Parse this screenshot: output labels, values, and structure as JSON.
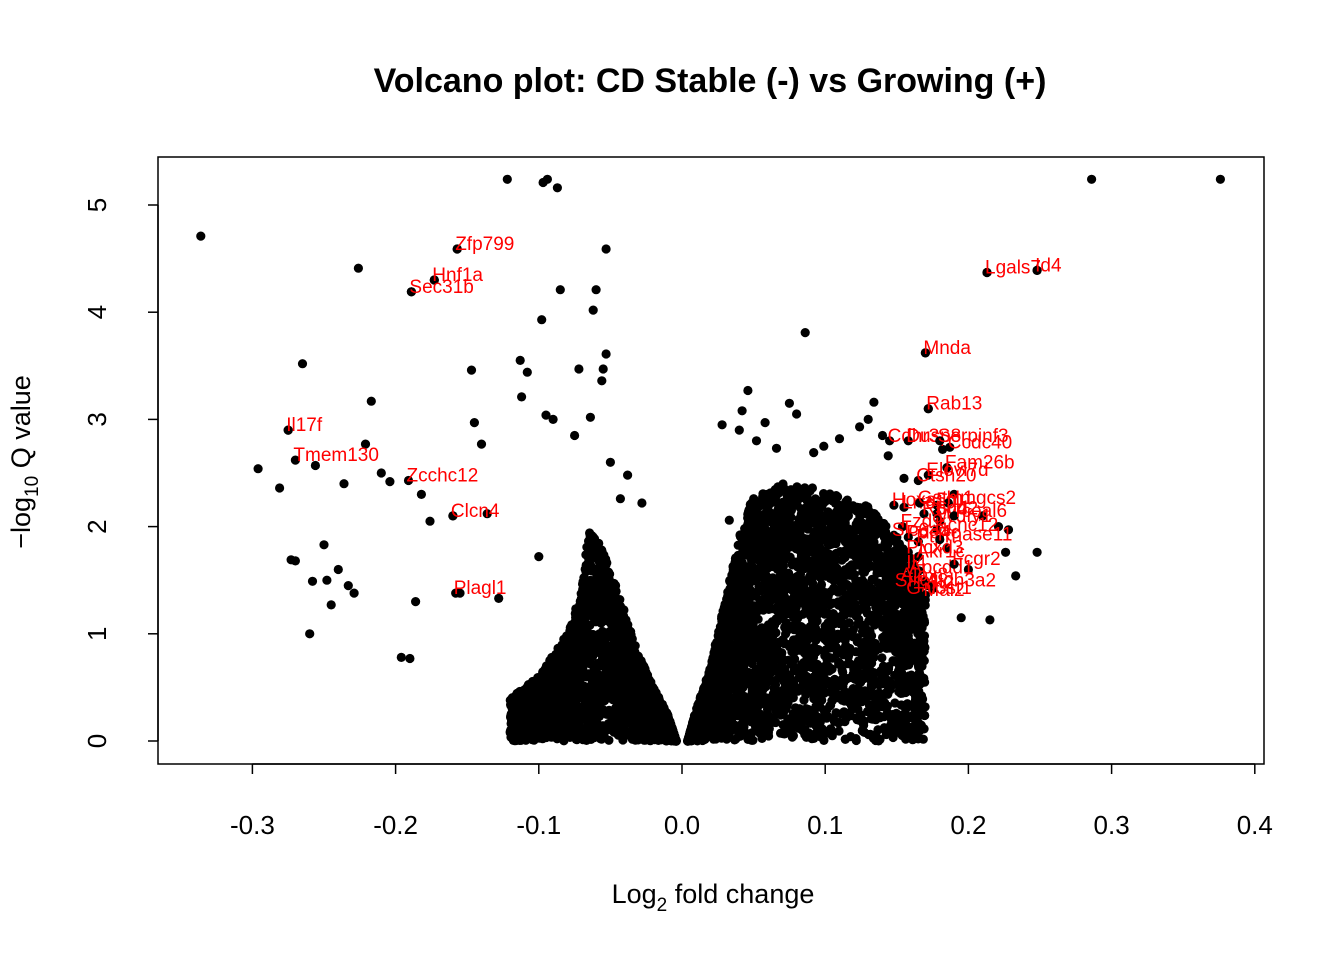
{
  "chart_data": {
    "type": "scatter",
    "title": "Volcano plot: CD Stable (-) vs Growing (+)",
    "xlabel": {
      "main": "Log",
      "sub": "2",
      "rest": " fold change"
    },
    "ylabel": {
      "prefix": "−log",
      "sub": "10",
      "rest": " Q value"
    },
    "xlim": [
      -0.36,
      0.405
    ],
    "ylim": [
      -0.2,
      5.45
    ],
    "x_ticks": [
      -0.3,
      -0.2,
      -0.1,
      0.0,
      0.1,
      0.2,
      0.3,
      0.4
    ],
    "x_tick_labels": [
      "-0.3",
      "-0.2",
      "-0.1",
      "0.0",
      "0.1",
      "0.2",
      "0.3",
      "0.4"
    ],
    "y_ticks": [
      0,
      1,
      2,
      3,
      4,
      5
    ],
    "y_tick_labels": [
      "0",
      "1",
      "2",
      "3",
      "4",
      "5"
    ],
    "grid": false,
    "point_color": "#000000",
    "label_color": "#ff0000",
    "bulk_density": {
      "left_envelope": [
        [
          -0.004,
          0.0
        ],
        [
          -0.01,
          0.25
        ],
        [
          -0.02,
          0.5
        ],
        [
          -0.03,
          0.8
        ],
        [
          -0.04,
          1.2
        ],
        [
          -0.05,
          1.6
        ],
        [
          -0.06,
          1.9
        ],
        [
          -0.065,
          2.0
        ],
        [
          -0.07,
          1.4
        ],
        [
          -0.08,
          1.0
        ],
        [
          -0.1,
          0.6
        ],
        [
          -0.12,
          0.4
        ]
      ],
      "right_envelope": [
        [
          0.004,
          0.0
        ],
        [
          0.01,
          0.3
        ],
        [
          0.02,
          0.7
        ],
        [
          0.03,
          1.3
        ],
        [
          0.04,
          1.9
        ],
        [
          0.05,
          2.3
        ],
        [
          0.07,
          2.4
        ],
        [
          0.1,
          2.35
        ],
        [
          0.13,
          2.2
        ],
        [
          0.15,
          1.9
        ],
        [
          0.17,
          1.5
        ]
      ]
    },
    "points": [
      {
        "x": -0.336,
        "y": 4.71
      },
      {
        "x": -0.296,
        "y": 2.54
      },
      {
        "x": -0.281,
        "y": 2.36
      },
      {
        "x": -0.275,
        "y": 2.9
      },
      {
        "x": -0.273,
        "y": 1.69
      },
      {
        "x": -0.27,
        "y": 1.68
      },
      {
        "x": -0.265,
        "y": 3.52
      },
      {
        "x": -0.26,
        "y": 1.0
      },
      {
        "x": -0.258,
        "y": 1.49
      },
      {
        "x": -0.256,
        "y": 2.57
      },
      {
        "x": -0.25,
        "y": 1.83
      },
      {
        "x": -0.248,
        "y": 1.5
      },
      {
        "x": -0.245,
        "y": 1.27
      },
      {
        "x": -0.24,
        "y": 1.6
      },
      {
        "x": -0.236,
        "y": 2.4
      },
      {
        "x": -0.233,
        "y": 1.45
      },
      {
        "x": -0.229,
        "y": 1.38
      },
      {
        "x": -0.226,
        "y": 4.41
      },
      {
        "x": -0.221,
        "y": 2.77
      },
      {
        "x": -0.217,
        "y": 3.17
      },
      {
        "x": -0.21,
        "y": 2.5
      },
      {
        "x": -0.204,
        "y": 2.42
      },
      {
        "x": -0.196,
        "y": 0.78
      },
      {
        "x": -0.19,
        "y": 0.77
      },
      {
        "x": -0.189,
        "y": 4.19
      },
      {
        "x": -0.186,
        "y": 1.3
      },
      {
        "x": -0.182,
        "y": 2.3
      },
      {
        "x": -0.176,
        "y": 2.05
      },
      {
        "x": -0.173,
        "y": 4.3
      },
      {
        "x": -0.16,
        "y": 2.1
      },
      {
        "x": -0.157,
        "y": 4.59
      },
      {
        "x": -0.155,
        "y": 1.38
      },
      {
        "x": -0.147,
        "y": 3.46
      },
      {
        "x": -0.145,
        "y": 2.97
      },
      {
        "x": -0.14,
        "y": 2.77
      },
      {
        "x": -0.136,
        "y": 2.12
      },
      {
        "x": -0.128,
        "y": 1.33
      },
      {
        "x": -0.122,
        "y": 5.24
      },
      {
        "x": -0.113,
        "y": 3.55
      },
      {
        "x": -0.112,
        "y": 3.21
      },
      {
        "x": -0.108,
        "y": 3.44
      },
      {
        "x": -0.1,
        "y": 1.72
      },
      {
        "x": -0.097,
        "y": 5.21
      },
      {
        "x": -0.095,
        "y": 3.04
      },
      {
        "x": -0.094,
        "y": 5.24
      },
      {
        "x": -0.098,
        "y": 3.93
      },
      {
        "x": -0.09,
        "y": 3.0
      },
      {
        "x": -0.087,
        "y": 5.16
      },
      {
        "x": -0.085,
        "y": 4.21
      },
      {
        "x": -0.075,
        "y": 2.85
      },
      {
        "x": -0.072,
        "y": 3.47
      },
      {
        "x": -0.064,
        "y": 3.02
      },
      {
        "x": -0.062,
        "y": 4.02
      },
      {
        "x": -0.06,
        "y": 4.21
      },
      {
        "x": -0.056,
        "y": 3.36
      },
      {
        "x": -0.055,
        "y": 3.47
      },
      {
        "x": -0.053,
        "y": 4.59
      },
      {
        "x": -0.053,
        "y": 3.61
      },
      {
        "x": -0.05,
        "y": 2.6
      },
      {
        "x": -0.043,
        "y": 2.26
      },
      {
        "x": -0.038,
        "y": 2.48
      },
      {
        "x": -0.028,
        "y": 2.22
      },
      {
        "x": 0.028,
        "y": 2.95
      },
      {
        "x": 0.033,
        "y": 2.06
      },
      {
        "x": 0.04,
        "y": 2.9
      },
      {
        "x": 0.042,
        "y": 3.08
      },
      {
        "x": 0.046,
        "y": 3.27
      },
      {
        "x": 0.052,
        "y": 2.8
      },
      {
        "x": 0.058,
        "y": 2.97
      },
      {
        "x": 0.066,
        "y": 2.73
      },
      {
        "x": 0.075,
        "y": 3.15
      },
      {
        "x": 0.08,
        "y": 3.05
      },
      {
        "x": 0.086,
        "y": 3.81
      },
      {
        "x": 0.092,
        "y": 2.69
      },
      {
        "x": 0.099,
        "y": 2.75
      },
      {
        "x": 0.11,
        "y": 2.82
      },
      {
        "x": 0.124,
        "y": 2.93
      },
      {
        "x": 0.13,
        "y": 3.0
      },
      {
        "x": 0.134,
        "y": 3.16
      },
      {
        "x": 0.14,
        "y": 2.85
      },
      {
        "x": 0.144,
        "y": 2.66
      },
      {
        "x": 0.15,
        "y": 1.9
      },
      {
        "x": 0.155,
        "y": 2.45
      },
      {
        "x": 0.16,
        "y": 1.3
      },
      {
        "x": 0.162,
        "y": 0.87
      },
      {
        "x": 0.166,
        "y": 1.08
      },
      {
        "x": 0.17,
        "y": 3.62
      },
      {
        "x": 0.172,
        "y": 3.1
      },
      {
        "x": 0.175,
        "y": 1.42
      },
      {
        "x": 0.178,
        "y": 2.2
      },
      {
        "x": 0.182,
        "y": 2.72
      },
      {
        "x": 0.185,
        "y": 1.8
      },
      {
        "x": 0.19,
        "y": 2.3
      },
      {
        "x": 0.195,
        "y": 1.15
      },
      {
        "x": 0.2,
        "y": 1.6
      },
      {
        "x": 0.21,
        "y": 2.1
      },
      {
        "x": 0.213,
        "y": 4.37
      },
      {
        "x": 0.215,
        "y": 1.13
      },
      {
        "x": 0.221,
        "y": 2.0
      },
      {
        "x": 0.226,
        "y": 1.76
      },
      {
        "x": 0.228,
        "y": 1.97
      },
      {
        "x": 0.233,
        "y": 1.54
      },
      {
        "x": 0.248,
        "y": 4.39
      },
      {
        "x": 0.248,
        "y": 1.76
      },
      {
        "x": 0.286,
        "y": 5.24
      },
      {
        "x": 0.376,
        "y": 5.24
      }
    ],
    "labeled_genes": [
      {
        "label": "Zfp799",
        "x": -0.157,
        "y": 4.59
      },
      {
        "label": "Hnf1a",
        "x": -0.173,
        "y": 4.3
      },
      {
        "label": "Sec31b",
        "x": -0.189,
        "y": 4.19
      },
      {
        "label": "Il17f",
        "x": -0.275,
        "y": 2.9
      },
      {
        "label": "Tmem130",
        "x": -0.27,
        "y": 2.62
      },
      {
        "label": "Zcchc12",
        "x": -0.191,
        "y": 2.43
      },
      {
        "label": "Clcn4",
        "x": -0.16,
        "y": 2.1
      },
      {
        "label": "Plagl1",
        "x": -0.158,
        "y": 1.38
      },
      {
        "label": "Lgals7",
        "x": 0.213,
        "y": 4.37
      },
      {
        "label": "Id4",
        "x": 0.248,
        "y": 4.39
      },
      {
        "label": "Mnda",
        "x": 0.17,
        "y": 3.62
      },
      {
        "label": "Rab13",
        "x": 0.172,
        "y": 3.1
      },
      {
        "label": "Cdhr3",
        "x": 0.145,
        "y": 2.8
      },
      {
        "label": "Dusp8",
        "x": 0.158,
        "y": 2.8
      },
      {
        "label": "Serpinf3",
        "x": 0.18,
        "y": 2.8
      },
      {
        "label": "Ccdc40",
        "x": 0.187,
        "y": 2.74
      },
      {
        "label": "Fam26b",
        "x": 0.185,
        "y": 2.55
      },
      {
        "label": "Elovl7d",
        "x": 0.172,
        "y": 2.48
      },
      {
        "label": "Ctsh20",
        "x": 0.165,
        "y": 2.43
      },
      {
        "label": "Hoxa5",
        "x": 0.148,
        "y": 2.2
      },
      {
        "label": "Lrrc10",
        "x": 0.155,
        "y": 2.18
      },
      {
        "label": "Gstm1",
        "x": 0.166,
        "y": 2.22
      },
      {
        "label": "Hmgcs2",
        "x": 0.186,
        "y": 2.22
      },
      {
        "label": "Scd2",
        "x": 0.178,
        "y": 2.12
      },
      {
        "label": "Rbp4",
        "x": 0.169,
        "y": 2.12
      },
      {
        "label": "Wdfy1",
        "x": 0.18,
        "y": 2.05
      },
      {
        "label": "Tceal6",
        "x": 0.19,
        "y": 2.1
      },
      {
        "label": "Fzd9",
        "x": 0.154,
        "y": 2.0
      },
      {
        "label": "Kcnc12",
        "x": 0.178,
        "y": 1.97
      },
      {
        "label": "Slc6a1",
        "x": 0.148,
        "y": 1.92
      },
      {
        "label": "Pde4c",
        "x": 0.158,
        "y": 1.9
      },
      {
        "label": "Ptprf",
        "x": 0.165,
        "y": 1.86
      },
      {
        "label": "Plcxd3",
        "x": 0.158,
        "y": 1.76
      },
      {
        "label": "Akr1c",
        "x": 0.165,
        "y": 1.72
      },
      {
        "label": "Rnase11",
        "x": 0.18,
        "y": 1.88
      },
      {
        "label": "Il4",
        "x": 0.158,
        "y": 1.62
      },
      {
        "label": "Apcdd1",
        "x": 0.16,
        "y": 1.57
      },
      {
        "label": "Fcgr2",
        "x": 0.19,
        "y": 1.65
      },
      {
        "label": "Alox8",
        "x": 0.154,
        "y": 1.5
      },
      {
        "label": "Sfrp1",
        "x": 0.15,
        "y": 1.45
      },
      {
        "label": "Dlk2",
        "x": 0.165,
        "y": 1.43
      },
      {
        "label": "Aldh3a2",
        "x": 0.172,
        "y": 1.45
      },
      {
        "label": "Gal3st1",
        "x": 0.158,
        "y": 1.38
      },
      {
        "label": "Mal2",
        "x": 0.17,
        "y": 1.36
      }
    ]
  }
}
